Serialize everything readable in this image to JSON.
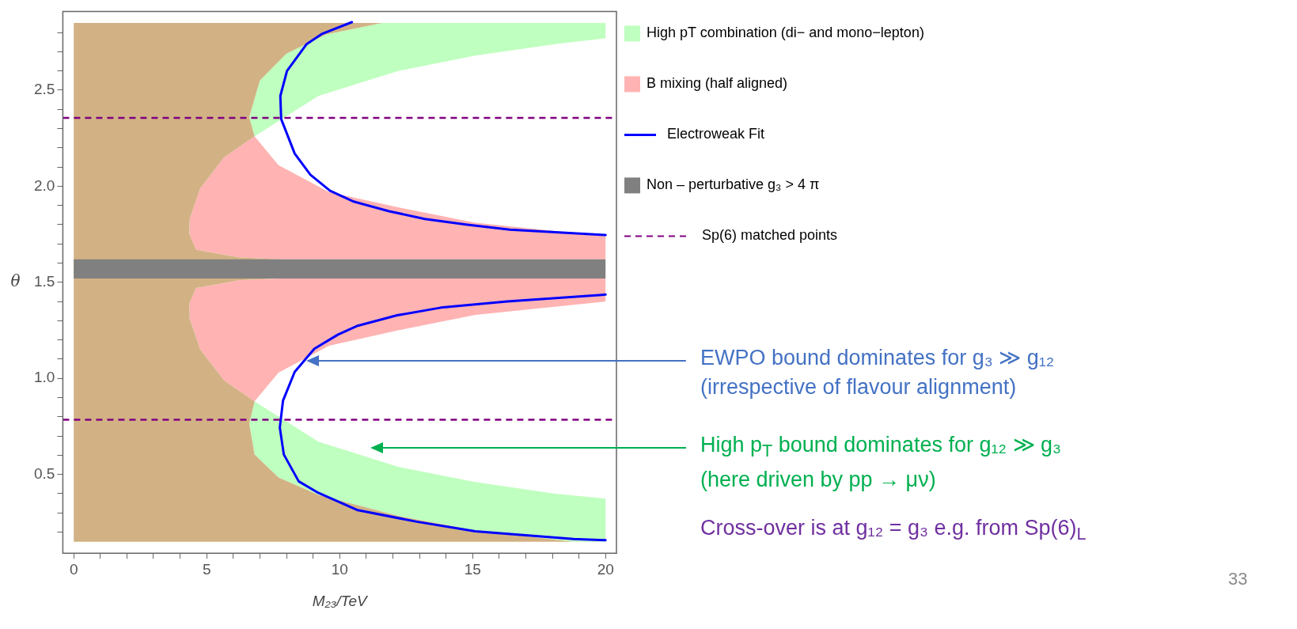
{
  "chart_data": {
    "type": "area",
    "xlabel": "M₂₃/TeV",
    "ylabel": "θ",
    "xlim": [
      -0.41,
      20.41
    ],
    "ylim": [
      0.09,
      2.91
    ],
    "xticks": [
      0,
      {
        "value": 1,
        "label": null
      },
      {
        "value": 2,
        "label": null
      },
      {
        "value": 3,
        "label": null
      },
      {
        "value": 4,
        "label": null
      },
      5,
      {
        "value": 6,
        "label": null
      },
      {
        "value": 7,
        "label": null
      },
      {
        "value": 8,
        "label": null
      },
      {
        "value": 9,
        "label": null
      },
      10,
      {
        "value": 11,
        "label": null
      },
      {
        "value": 12,
        "label": null
      },
      {
        "value": 13,
        "label": null
      },
      {
        "value": 14,
        "label": null
      },
      15,
      {
        "value": 16,
        "label": null
      },
      {
        "value": 17,
        "label": null
      },
      {
        "value": 18,
        "label": null
      },
      {
        "value": 19,
        "label": null
      },
      20
    ],
    "yticks": [
      {
        "value": 0.2,
        "label": null
      },
      {
        "value": 0.3,
        "label": null
      },
      {
        "value": 0.4,
        "label": null
      },
      0.5,
      {
        "value": 0.6,
        "label": null
      },
      {
        "value": 0.7,
        "label": null
      },
      {
        "value": 0.8,
        "label": null
      },
      {
        "value": 0.9,
        "label": null
      },
      {
        "value": 1,
        "label": "1.0"
      },
      {
        "value": 1.1,
        "label": null
      },
      {
        "value": 1.2,
        "label": null
      },
      {
        "value": 1.3,
        "label": null
      },
      {
        "value": 1.4,
        "label": null
      },
      1.5,
      {
        "value": 1.6,
        "label": null
      },
      {
        "value": 1.7,
        "label": null
      },
      {
        "value": 1.8,
        "label": null
      },
      {
        "value": 1.9,
        "label": null
      },
      {
        "value": 2,
        "label": "2.0"
      },
      {
        "value": 2.1,
        "label": null
      },
      {
        "value": 2.2,
        "label": null
      },
      {
        "value": 2.3,
        "label": null
      },
      {
        "value": 2.4,
        "label": null
      },
      2.5,
      {
        "value": 2.6,
        "label": null
      },
      {
        "value": 2.7,
        "label": null
      },
      {
        "value": 2.8,
        "label": null
      }
    ],
    "legend": "right",
    "marker": "none",
    "series": [
      {
        "name": "High pT combination (di− and mono−lepton)",
        "color": "#bfffbf",
        "x": [
          11.6,
          20,
          20,
          18.1,
          15.1,
          12.2,
          9.2,
          6.8,
          6.6,
          7.0,
          8.0,
          9.5,
          11.6,
          null,
          6.8,
          9.2,
          12.2,
          15.1,
          18.1,
          20,
          20,
          18.8,
          15.1,
          12.2,
          9.2,
          7.7,
          6.8,
          6.6,
          6.8
        ],
        "values": [
          2.85,
          2.85,
          2.77,
          2.74,
          2.68,
          2.6,
          2.47,
          2.26,
          2.36,
          2.55,
          2.69,
          2.79,
          2.85,
          null,
          0.88,
          0.67,
          0.54,
          0.46,
          0.4,
          0.374,
          0.15,
          0.15,
          0.208,
          0.284,
          0.394,
          0.484,
          0.604,
          0.764,
          0.88
        ]
      },
      {
        "name": "B mixing (half aligned)",
        "color": "#ffb3b3",
        "x": [
          6.8,
          7.7,
          9.6,
          12.2,
          15.1,
          20,
          20,
          7.7,
          6.2,
          4.6,
          4.35,
          4.36,
          4.76,
          5.65,
          6.8,
          null,
          6.8,
          7.7,
          9.6,
          12.2,
          15.1,
          20,
          20,
          7.7,
          6.2,
          4.6,
          4.35,
          4.36,
          4.76,
          5.65,
          6.8
        ],
        "values": [
          2.26,
          2.11,
          1.97,
          1.89,
          1.81,
          1.74,
          1.62,
          1.62,
          1.63,
          1.67,
          1.75,
          1.83,
          1.99,
          2.15,
          2.26,
          null,
          0.88,
          1.03,
          1.17,
          1.25,
          1.33,
          1.4,
          1.52,
          1.52,
          1.51,
          1.47,
          1.39,
          1.31,
          1.15,
          0.99,
          0.88
        ]
      },
      {
        "color": "#d2b284",
        "x": [
          0,
          11.6,
          9.5,
          8.0,
          7.0,
          6.6,
          6.8,
          5.65,
          4.76,
          4.36,
          4.35,
          4.6,
          6.2,
          7.7,
          7.7,
          6.2,
          4.6,
          4.35,
          4.36,
          4.76,
          5.65,
          6.8,
          6.6,
          6.8,
          7.7,
          9.2,
          12.2,
          15.1,
          18.8,
          0,
          0
        ],
        "values": [
          2.85,
          2.85,
          2.79,
          2.69,
          2.55,
          2.36,
          2.26,
          2.15,
          1.99,
          1.83,
          1.75,
          1.67,
          1.63,
          1.62,
          1.52,
          1.51,
          1.47,
          1.39,
          1.31,
          1.15,
          0.99,
          0.88,
          0.764,
          0.604,
          0.484,
          0.394,
          0.284,
          0.208,
          0.15,
          0.15,
          2.85
        ]
      },
      {
        "name": "Electroweak Fit",
        "type": "line",
        "color": "#0000ff",
        "x": [
          10.46,
          9.35,
          8.76,
          8.02,
          7.77,
          7.8,
          8.31,
          8.9,
          9.64,
          10.53,
          11.86,
          13.2,
          14.8,
          16.4,
          20,
          null,
          20,
          18.8,
          15.1,
          12.9,
          10.68,
          9.2,
          8.46,
          7.9,
          7.75,
          7.87,
          8.31,
          9.05,
          9.94,
          10.68,
          12.16,
          13.8,
          16.3,
          20
        ],
        "values": [
          2.854,
          2.794,
          2.74,
          2.6,
          2.47,
          2.35,
          2.17,
          2.06,
          1.976,
          1.92,
          1.87,
          1.83,
          1.8,
          1.774,
          1.746,
          null,
          0.158,
          0.164,
          0.204,
          0.254,
          0.314,
          0.404,
          0.464,
          0.604,
          0.744,
          0.884,
          1.034,
          1.154,
          1.228,
          1.274,
          1.328,
          1.368,
          1.4,
          1.436
        ]
      },
      {
        "name": "Non – perturbative g₃ > 4 π",
        "color": "#808080",
        "x": [
          0,
          20,
          20,
          0,
          0
        ],
        "values": [
          1.52,
          1.52,
          1.62,
          1.62,
          1.52
        ]
      }
    ],
    "ref_lines": [
      {
        "axis": "y",
        "value": 2.356,
        "label": "Sp(6) matched points",
        "color": "#800080",
        "line_style": "dashed"
      },
      {
        "axis": "y",
        "value": 0.785,
        "color": "#800080",
        "line_style": "dashed"
      }
    ],
    "annotations": [
      "EWPO bound dominates for g₃ ≫ g₁₂\n(irrespective of flavour alignment)",
      "High p$_{T}$ bound dominates for g₁₂ ≫ g₃\n(here driven by pp → μν)",
      "Cross-over is at g₁₂ = g₃ e.g. from Sp(6)$_{L}$",
      "33"
    ]
  }
}
